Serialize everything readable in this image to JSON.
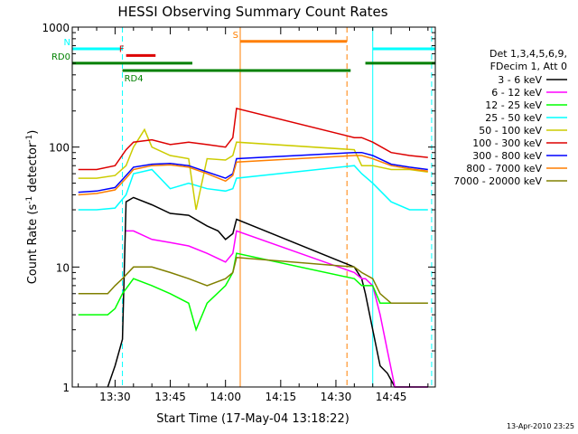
{
  "chart_data": {
    "type": "line",
    "title": "HESSI Observing Summary Count Rates",
    "xlabel": "Start Time (17-May-04 13:18:22)",
    "ylabel": "Count Rate (s⁻¹ detector⁻¹)",
    "ylabel_main": "Count Rate (s",
    "ylabel_sup1": "-1",
    "ylabel_mid": " detector",
    "ylabel_sup2": "-1",
    "ylabel_end": ")",
    "y_scale": "log",
    "xlim": [
      "13:18:22",
      "14:57:00"
    ],
    "ylim": [
      1,
      1000
    ],
    "x_ticks": [
      "13:30",
      "13:45",
      "14:00",
      "14:15",
      "14:30",
      "14:45"
    ],
    "y_ticks": [
      "1",
      "10",
      "100",
      "1000"
    ],
    "grid": false,
    "legend_position": "right",
    "legend_header": [
      "Det 1,3,4,5,6,9,",
      "FDecim 1, Att 0"
    ],
    "series": [
      {
        "name": "3 - 6 keV",
        "color": "#000000",
        "x": [
          "13:28",
          "13:30",
          "13:32",
          "13:33",
          "13:35",
          "13:40",
          "13:45",
          "13:50",
          "13:55",
          "13:58",
          "14:00",
          "14:02",
          "14:03",
          "14:35",
          "14:37",
          "14:38",
          "14:40",
          "14:42",
          "14:44",
          "14:46",
          "14:50",
          "14:55"
        ],
        "y": [
          1,
          1.5,
          2.5,
          35,
          38,
          33,
          28,
          27,
          22,
          20,
          17,
          19,
          25,
          10,
          8,
          6,
          3,
          1.5,
          1.3,
          1,
          1,
          1
        ]
      },
      {
        "name": "6 - 12 keV",
        "color": "#ff00ff",
        "x": [
          "13:33",
          "13:35",
          "13:40",
          "13:45",
          "13:50",
          "13:55",
          "14:00",
          "14:02",
          "14:03",
          "14:35",
          "14:37",
          "14:38",
          "14:40",
          "14:42",
          "14:44",
          "14:46",
          "14:50",
          "14:55"
        ],
        "y": [
          20,
          20,
          17,
          16,
          15,
          13,
          11,
          13,
          20,
          9,
          8,
          8,
          7,
          4,
          2,
          1,
          1,
          1
        ]
      },
      {
        "name": "12 - 25 keV",
        "color": "#00ff00",
        "x": [
          "13:20",
          "13:25",
          "13:28",
          "13:30",
          "13:32",
          "13:35",
          "13:40",
          "13:45",
          "13:50",
          "13:52",
          "13:55",
          "14:00",
          "14:02",
          "14:03",
          "14:35",
          "14:37",
          "14:40",
          "14:42",
          "14:45",
          "14:50",
          "14:55"
        ],
        "y": [
          4,
          4,
          4,
          4.5,
          6,
          8,
          7,
          6,
          5,
          3,
          5,
          7,
          9,
          13,
          8,
          7,
          7,
          5,
          5,
          5,
          5
        ]
      },
      {
        "name": "25 - 50 keV",
        "color": "#00ffff",
        "x": [
          "13:20",
          "13:25",
          "13:30",
          "13:33",
          "13:35",
          "13:40",
          "13:45",
          "13:50",
          "13:55",
          "14:00",
          "14:02",
          "14:03",
          "14:35",
          "14:37",
          "14:40",
          "14:45",
          "14:50",
          "14:55"
        ],
        "y": [
          30,
          30,
          31,
          40,
          60,
          65,
          45,
          50,
          45,
          43,
          45,
          55,
          70,
          60,
          50,
          35,
          30,
          30
        ]
      },
      {
        "name": "50 - 100 keV",
        "color": "#cccc00",
        "x": [
          "13:20",
          "13:25",
          "13:30",
          "13:33",
          "13:35",
          "13:38",
          "13:40",
          "13:45",
          "13:50",
          "13:52",
          "13:55",
          "14:00",
          "14:02",
          "14:03",
          "14:35",
          "14:37",
          "14:40",
          "14:45",
          "14:50",
          "14:55"
        ],
        "y": [
          55,
          55,
          58,
          70,
          100,
          140,
          100,
          85,
          80,
          30,
          80,
          78,
          85,
          110,
          95,
          70,
          70,
          65,
          65,
          62
        ]
      },
      {
        "name": "100 - 300 keV",
        "color": "#dd0000",
        "x": [
          "13:20",
          "13:25",
          "13:30",
          "13:33",
          "13:35",
          "13:40",
          "13:45",
          "13:50",
          "13:55",
          "14:00",
          "14:02",
          "14:03",
          "14:35",
          "14:37",
          "14:40",
          "14:45",
          "14:50",
          "14:55"
        ],
        "y": [
          65,
          65,
          70,
          95,
          110,
          115,
          105,
          110,
          105,
          100,
          120,
          210,
          120,
          120,
          110,
          90,
          85,
          82
        ]
      },
      {
        "name": "300 - 800 keV",
        "color": "#0000ff",
        "x": [
          "13:20",
          "13:25",
          "13:30",
          "13:33",
          "13:35",
          "13:40",
          "13:45",
          "13:50",
          "13:55",
          "14:00",
          "14:02",
          "14:03",
          "14:35",
          "14:37",
          "14:40",
          "14:45",
          "14:50",
          "14:55"
        ],
        "y": [
          42,
          43,
          46,
          58,
          68,
          72,
          73,
          70,
          62,
          55,
          60,
          80,
          90,
          90,
          85,
          72,
          68,
          65
        ]
      },
      {
        "name": "800 - 7000 keV",
        "color": "#ff7f00",
        "x": [
          "13:20",
          "13:25",
          "13:30",
          "13:33",
          "13:35",
          "13:40",
          "13:45",
          "13:50",
          "13:55",
          "14:00",
          "14:02",
          "14:03",
          "14:35",
          "14:37",
          "14:40",
          "14:45",
          "14:50",
          "14:55"
        ],
        "y": [
          40,
          41,
          44,
          55,
          65,
          70,
          71,
          68,
          60,
          52,
          58,
          75,
          85,
          85,
          80,
          70,
          66,
          63
        ]
      },
      {
        "name": "7000 - 20000 keV",
        "color": "#808000",
        "x": [
          "13:20",
          "13:25",
          "13:28",
          "13:30",
          "13:32",
          "13:35",
          "13:40",
          "13:45",
          "13:50",
          "13:55",
          "14:00",
          "14:02",
          "14:03",
          "14:35",
          "14:37",
          "14:40",
          "14:42",
          "14:45",
          "14:50",
          "14:55"
        ],
        "y": [
          6,
          6,
          6,
          7,
          8,
          10,
          10,
          9,
          8,
          7,
          8,
          9,
          12,
          10,
          9,
          8,
          6,
          5,
          5,
          5
        ]
      }
    ],
    "annotations": [
      {
        "label": "N",
        "color": "#00ffff",
        "y": 660,
        "segments": [
          [
            "13:18:22",
            "13:32"
          ],
          [
            "14:40",
            "14:57"
          ]
        ]
      },
      {
        "label": "F",
        "color": "#dd0000",
        "y": 580,
        "segments": [
          [
            "13:33",
            "13:41"
          ]
        ]
      },
      {
        "label": "RD0",
        "color": "#008000",
        "y": 500,
        "segments": [
          [
            "13:18:22",
            "13:51"
          ],
          [
            "14:38",
            "14:57"
          ]
        ]
      },
      {
        "label": "RD4",
        "color": "#008000",
        "y": 435,
        "segments": [
          [
            "13:32",
            "13:51"
          ],
          [
            "13:51",
            "14:34"
          ]
        ]
      },
      {
        "label": "S",
        "color": "#ff7f00",
        "y": 760,
        "segments": [
          [
            "14:04",
            "14:33"
          ]
        ]
      }
    ],
    "vlines": [
      {
        "x": "13:18:22",
        "color": "#00ffff",
        "style": "solid"
      },
      {
        "x": "13:32",
        "color": "#00ffff",
        "style": "dashed"
      },
      {
        "x": "14:04",
        "color": "#ff7f00",
        "style": "solid"
      },
      {
        "x": "14:33",
        "color": "#ff7f00",
        "style": "dashed"
      },
      {
        "x": "14:40",
        "color": "#00ffff",
        "style": "solid"
      },
      {
        "x": "14:56",
        "color": "#00ffff",
        "style": "dashed"
      }
    ],
    "footer": "13-Apr-2010 23:25"
  }
}
